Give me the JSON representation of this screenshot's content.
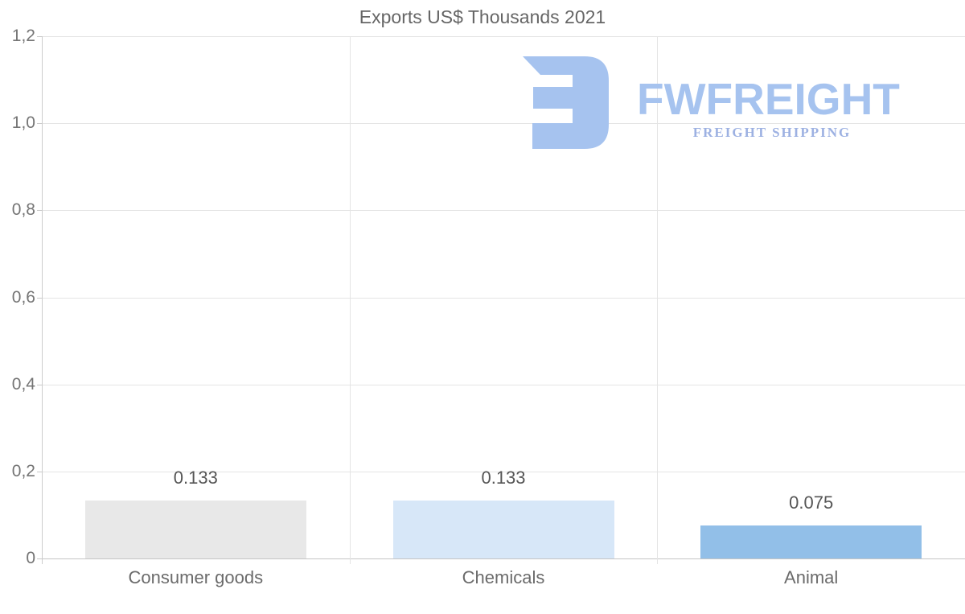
{
  "chart_data": {
    "type": "bar",
    "title": "Exports US$ Thousands 2021",
    "categories": [
      "Consumer goods",
      "Chemicals",
      "Animal"
    ],
    "values": [
      0.133,
      0.133,
      0.075
    ],
    "value_labels": [
      "0.133",
      "0.133",
      "0.075"
    ],
    "bar_colors": [
      "#e8e8e8",
      "#d7e7f8",
      "#92bfe8"
    ],
    "xlabel": "",
    "ylabel": "",
    "ylim": [
      0,
      1.2
    ],
    "yticks": [
      {
        "value": 0.0,
        "label": "0"
      },
      {
        "value": 0.2,
        "label": "0,2"
      },
      {
        "value": 0.4,
        "label": "0,4"
      },
      {
        "value": 0.6,
        "label": "0,6"
      },
      {
        "value": 0.8,
        "label": "0,8"
      },
      {
        "value": 1.0,
        "label": "1,0"
      },
      {
        "value": 1.2,
        "label": "1,2"
      }
    ],
    "grid": true,
    "legend": false
  },
  "watermark": {
    "brand": "FWFREIGHT",
    "tagline": "FREIGHT SHIPPING",
    "logo_color": "#a6c3ef",
    "tagline_color": "#9db1e2"
  },
  "colors": {
    "title_text": "#666666",
    "axis_text": "#757575",
    "value_text": "#555555",
    "gridline": "#e4e4e4",
    "axis_line": "#c9c9c9"
  }
}
